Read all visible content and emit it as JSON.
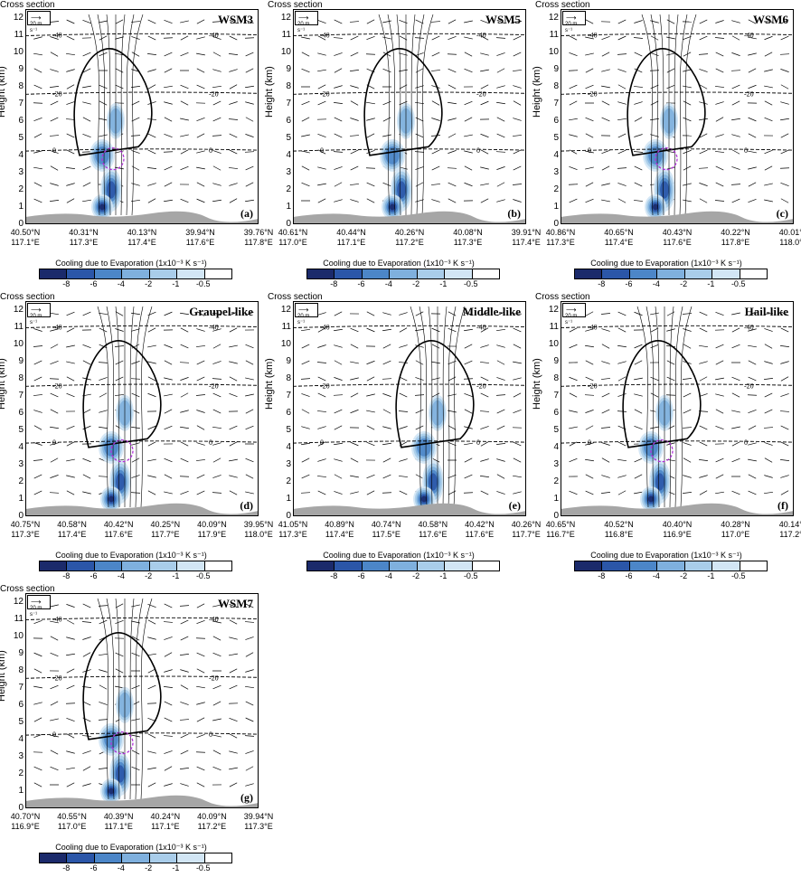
{
  "panels": [
    {
      "cross_section": "Cross section",
      "name": "WSM3",
      "label": "(a)",
      "vector_key": "20 m s⁻¹",
      "x_ticks": [
        [
          "40.50°N",
          "117.1°E"
        ],
        [
          "40.31°N",
          "117.3°E"
        ],
        [
          "40.13°N",
          "117.4°E"
        ],
        [
          "39.94°N",
          "117.6°E"
        ],
        [
          "39.76°N",
          "117.8°E"
        ]
      ]
    },
    {
      "cross_section": "Cross section",
      "name": "WSM5",
      "label": "(b)",
      "vector_key": "20 m s⁻¹",
      "x_ticks": [
        [
          "40.61°N",
          "117.0°E"
        ],
        [
          "40.44°N",
          "117.1°E"
        ],
        [
          "40.26°N",
          "117.2°E"
        ],
        [
          "40.08°N",
          "117.3°E"
        ],
        [
          "39.91°N",
          "117.4°E"
        ]
      ]
    },
    {
      "cross_section": "Cross section",
      "name": "WSM6",
      "label": "(c)",
      "vector_key": "20 m s⁻¹",
      "x_ticks": [
        [
          "40.86°N",
          "117.3°E"
        ],
        [
          "40.65°N",
          "117.4°E"
        ],
        [
          "40.43°N",
          "117.6°E"
        ],
        [
          "40.22°N",
          "117.8°E"
        ],
        [
          "40.01°N",
          "118.0°E"
        ]
      ]
    },
    {
      "cross_section": "Cross section",
      "name": "Graupel-like",
      "label": "(d)",
      "vector_key": "20 m s⁻¹",
      "x_ticks": [
        [
          "40.75°N",
          "117.3°E"
        ],
        [
          "40.58°N",
          "117.4°E"
        ],
        [
          "40.42°N",
          "117.6°E"
        ],
        [
          "40.25°N",
          "117.7°E"
        ],
        [
          "40.09°N",
          "117.9°E"
        ],
        [
          "39.95°N",
          "118.0°E"
        ]
      ]
    },
    {
      "cross_section": "Cross section",
      "name": "Middle-like",
      "label": "(e)",
      "vector_key": "20 m s⁻¹",
      "x_ticks": [
        [
          "41.05°N",
          "117.3°E"
        ],
        [
          "40.89°N",
          "117.4°E"
        ],
        [
          "40.74°N",
          "117.5°E"
        ],
        [
          "40.58°N",
          "117.6°E"
        ],
        [
          "40.42°N",
          "117.6°E"
        ],
        [
          "40.26°N",
          "117.7°E"
        ]
      ]
    },
    {
      "cross_section": "Cross section",
      "name": "Hail-like",
      "label": "(f)",
      "vector_key": "20 m s⁻¹",
      "x_ticks": [
        [
          "40.65°N",
          "116.7°E"
        ],
        [
          "40.52°N",
          "116.8°E"
        ],
        [
          "40.40°N",
          "116.9°E"
        ],
        [
          "40.28°N",
          "117.0°E"
        ],
        [
          "40.14°N",
          "117.2°E"
        ]
      ]
    },
    {
      "cross_section": "Cross section",
      "name": "WSM7",
      "label": "(g)",
      "vector_key": "20 m s⁻¹",
      "x_ticks": [
        [
          "40.70°N",
          "116.9°E"
        ],
        [
          "40.55°N",
          "117.0°E"
        ],
        [
          "40.39°N",
          "117.1°E"
        ],
        [
          "40.24°N",
          "117.1°E"
        ],
        [
          "40.09°N",
          "117.2°E"
        ],
        [
          "39.94°N",
          "117.3°E"
        ]
      ]
    }
  ],
  "axis": {
    "ylabel": "Height (km)",
    "y_ticks": [
      0,
      1,
      2,
      3,
      4,
      5,
      6,
      7,
      8,
      9,
      10,
      11,
      12
    ]
  },
  "colorbar": {
    "title": "Cooling due to Evaporation (1x10⁻³ K s⁻¹)",
    "labels": [
      "-8",
      "-6",
      "-4",
      "-2",
      "-1",
      "-0.5"
    ],
    "colors": [
      "#1b2a6b",
      "#2b56a8",
      "#4c86c8",
      "#7fb0de",
      "#a9cdea",
      "#d2e6f5",
      "#ffffff"
    ]
  },
  "isotherms": [
    "0",
    "-20",
    "-40"
  ],
  "chart_data": {
    "type": "heatmap",
    "ylabel": "Height (km)",
    "ylim": [
      0,
      12.5
    ],
    "colorbar_levels": [
      -8,
      -6,
      -4,
      -2,
      -1,
      -0.5
    ],
    "isotherm_heights_km": {
      "0": 4.3,
      "-20": 7.6,
      "-40": 11.0
    }
  }
}
